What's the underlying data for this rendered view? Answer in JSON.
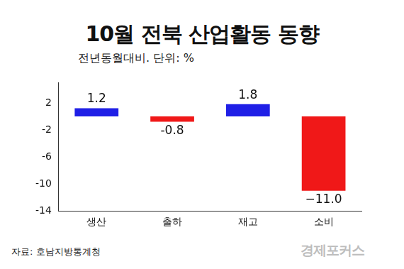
{
  "chart_data": {
    "type": "bar",
    "title": "10월 전북 산업활동 동향",
    "subtitle": "전년동월대비. 단위: %",
    "categories": [
      "생산",
      "출하",
      "재고",
      "소비"
    ],
    "values": [
      1.2,
      -0.8,
      1.8,
      -11.0
    ],
    "value_labels": [
      "1.2",
      "-0.8",
      "1.8",
      "−11.0"
    ],
    "colors": [
      "#1f1fe6",
      "#f01818",
      "#1f1fe6",
      "#f01818"
    ],
    "ylim": [
      -14,
      5
    ],
    "yticks": [
      2,
      -2,
      -6,
      -10,
      -14
    ],
    "grid": false,
    "data_labels": true,
    "source": "자료: 호남지방통계청",
    "logo": "경제포커스"
  }
}
